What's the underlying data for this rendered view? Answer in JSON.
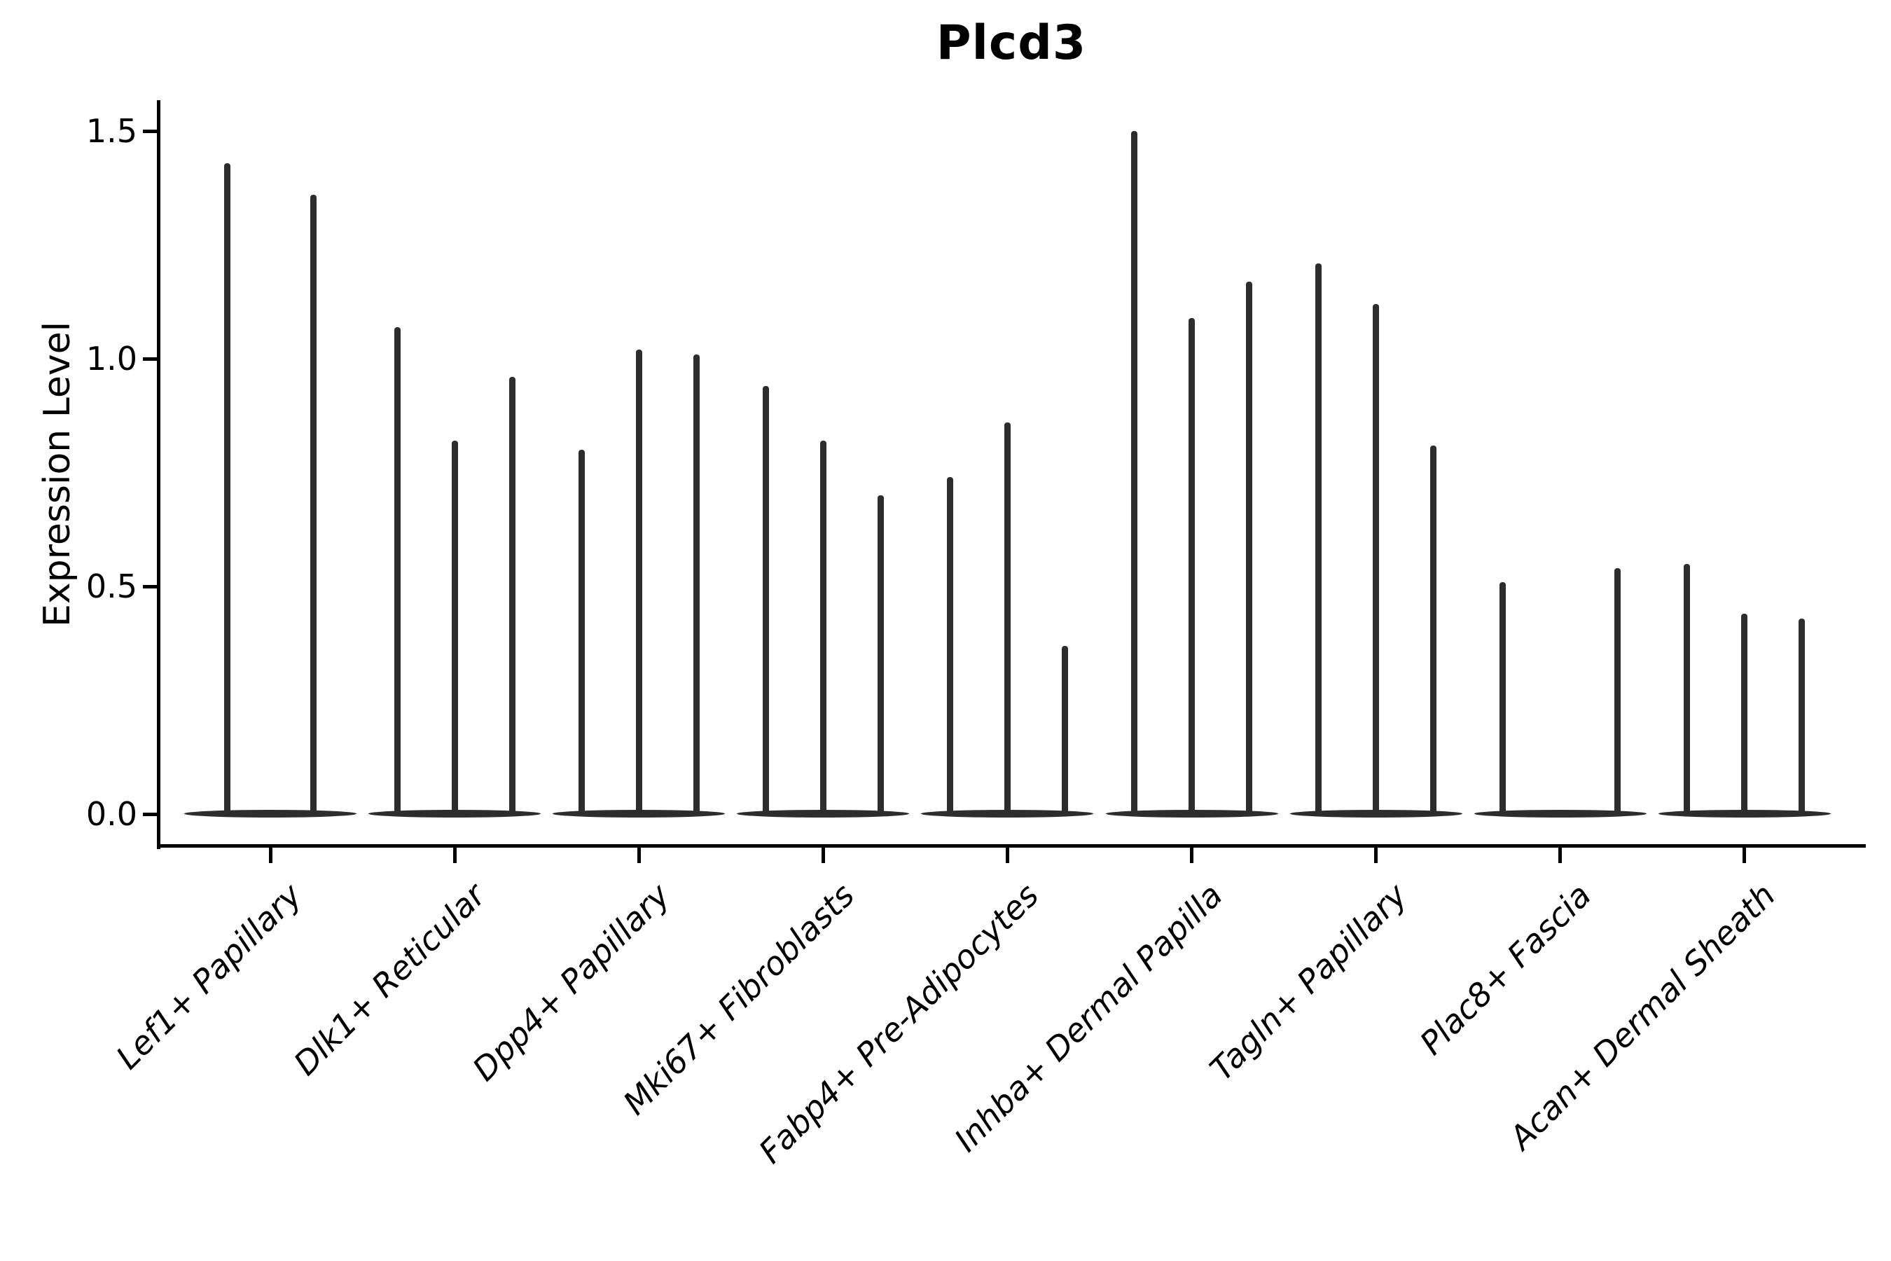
{
  "chart_data": {
    "type": "violin",
    "title": "Plcd3",
    "ylabel": "Expression Level",
    "xlabel": "",
    "yticks": [
      "0.0",
      "0.5",
      "1.0",
      "1.5"
    ],
    "ylim": [
      -0.07,
      1.57
    ],
    "grid": false,
    "legend": "none",
    "violin_color": "#2d2d2d",
    "axis_color": "#000000",
    "description": "Violin plot of Plcd3 expression level per fibroblast cluster; each cluster shows 2-3 narrow spike-like violins (one per split/sample), heights are the maximum expression reached by each violin; a value of 0 means a flat violin collapsed on the baseline.",
    "categories": [
      {
        "label": "Lef1+ Papillary",
        "violins": [
          1.43,
          1.36
        ]
      },
      {
        "label": "Dlk1+ Reticular",
        "violins": [
          1.07,
          0.82,
          0.96
        ]
      },
      {
        "label": "Dpp4+ Papillary",
        "violins": [
          0.8,
          1.02,
          1.01
        ]
      },
      {
        "label": "Mki67+ Fibroblasts",
        "violins": [
          0.94,
          0.82,
          0.7
        ]
      },
      {
        "label": "Fabp4+ Pre-Adipocytes",
        "violins": [
          0.74,
          0.86,
          0.37
        ]
      },
      {
        "label": "Inhba+ Dermal Papilla",
        "violins": [
          1.5,
          1.09,
          1.17
        ]
      },
      {
        "label": "Tagln+ Papillary",
        "violins": [
          1.21,
          1.12,
          0.81
        ]
      },
      {
        "label": "Plac8+ Fascia",
        "violins": [
          0.51,
          0.0,
          0.54
        ]
      },
      {
        "label": "Acan+ Dermal Sheath",
        "violins": [
          0.55,
          0.44,
          0.43
        ]
      }
    ]
  }
}
